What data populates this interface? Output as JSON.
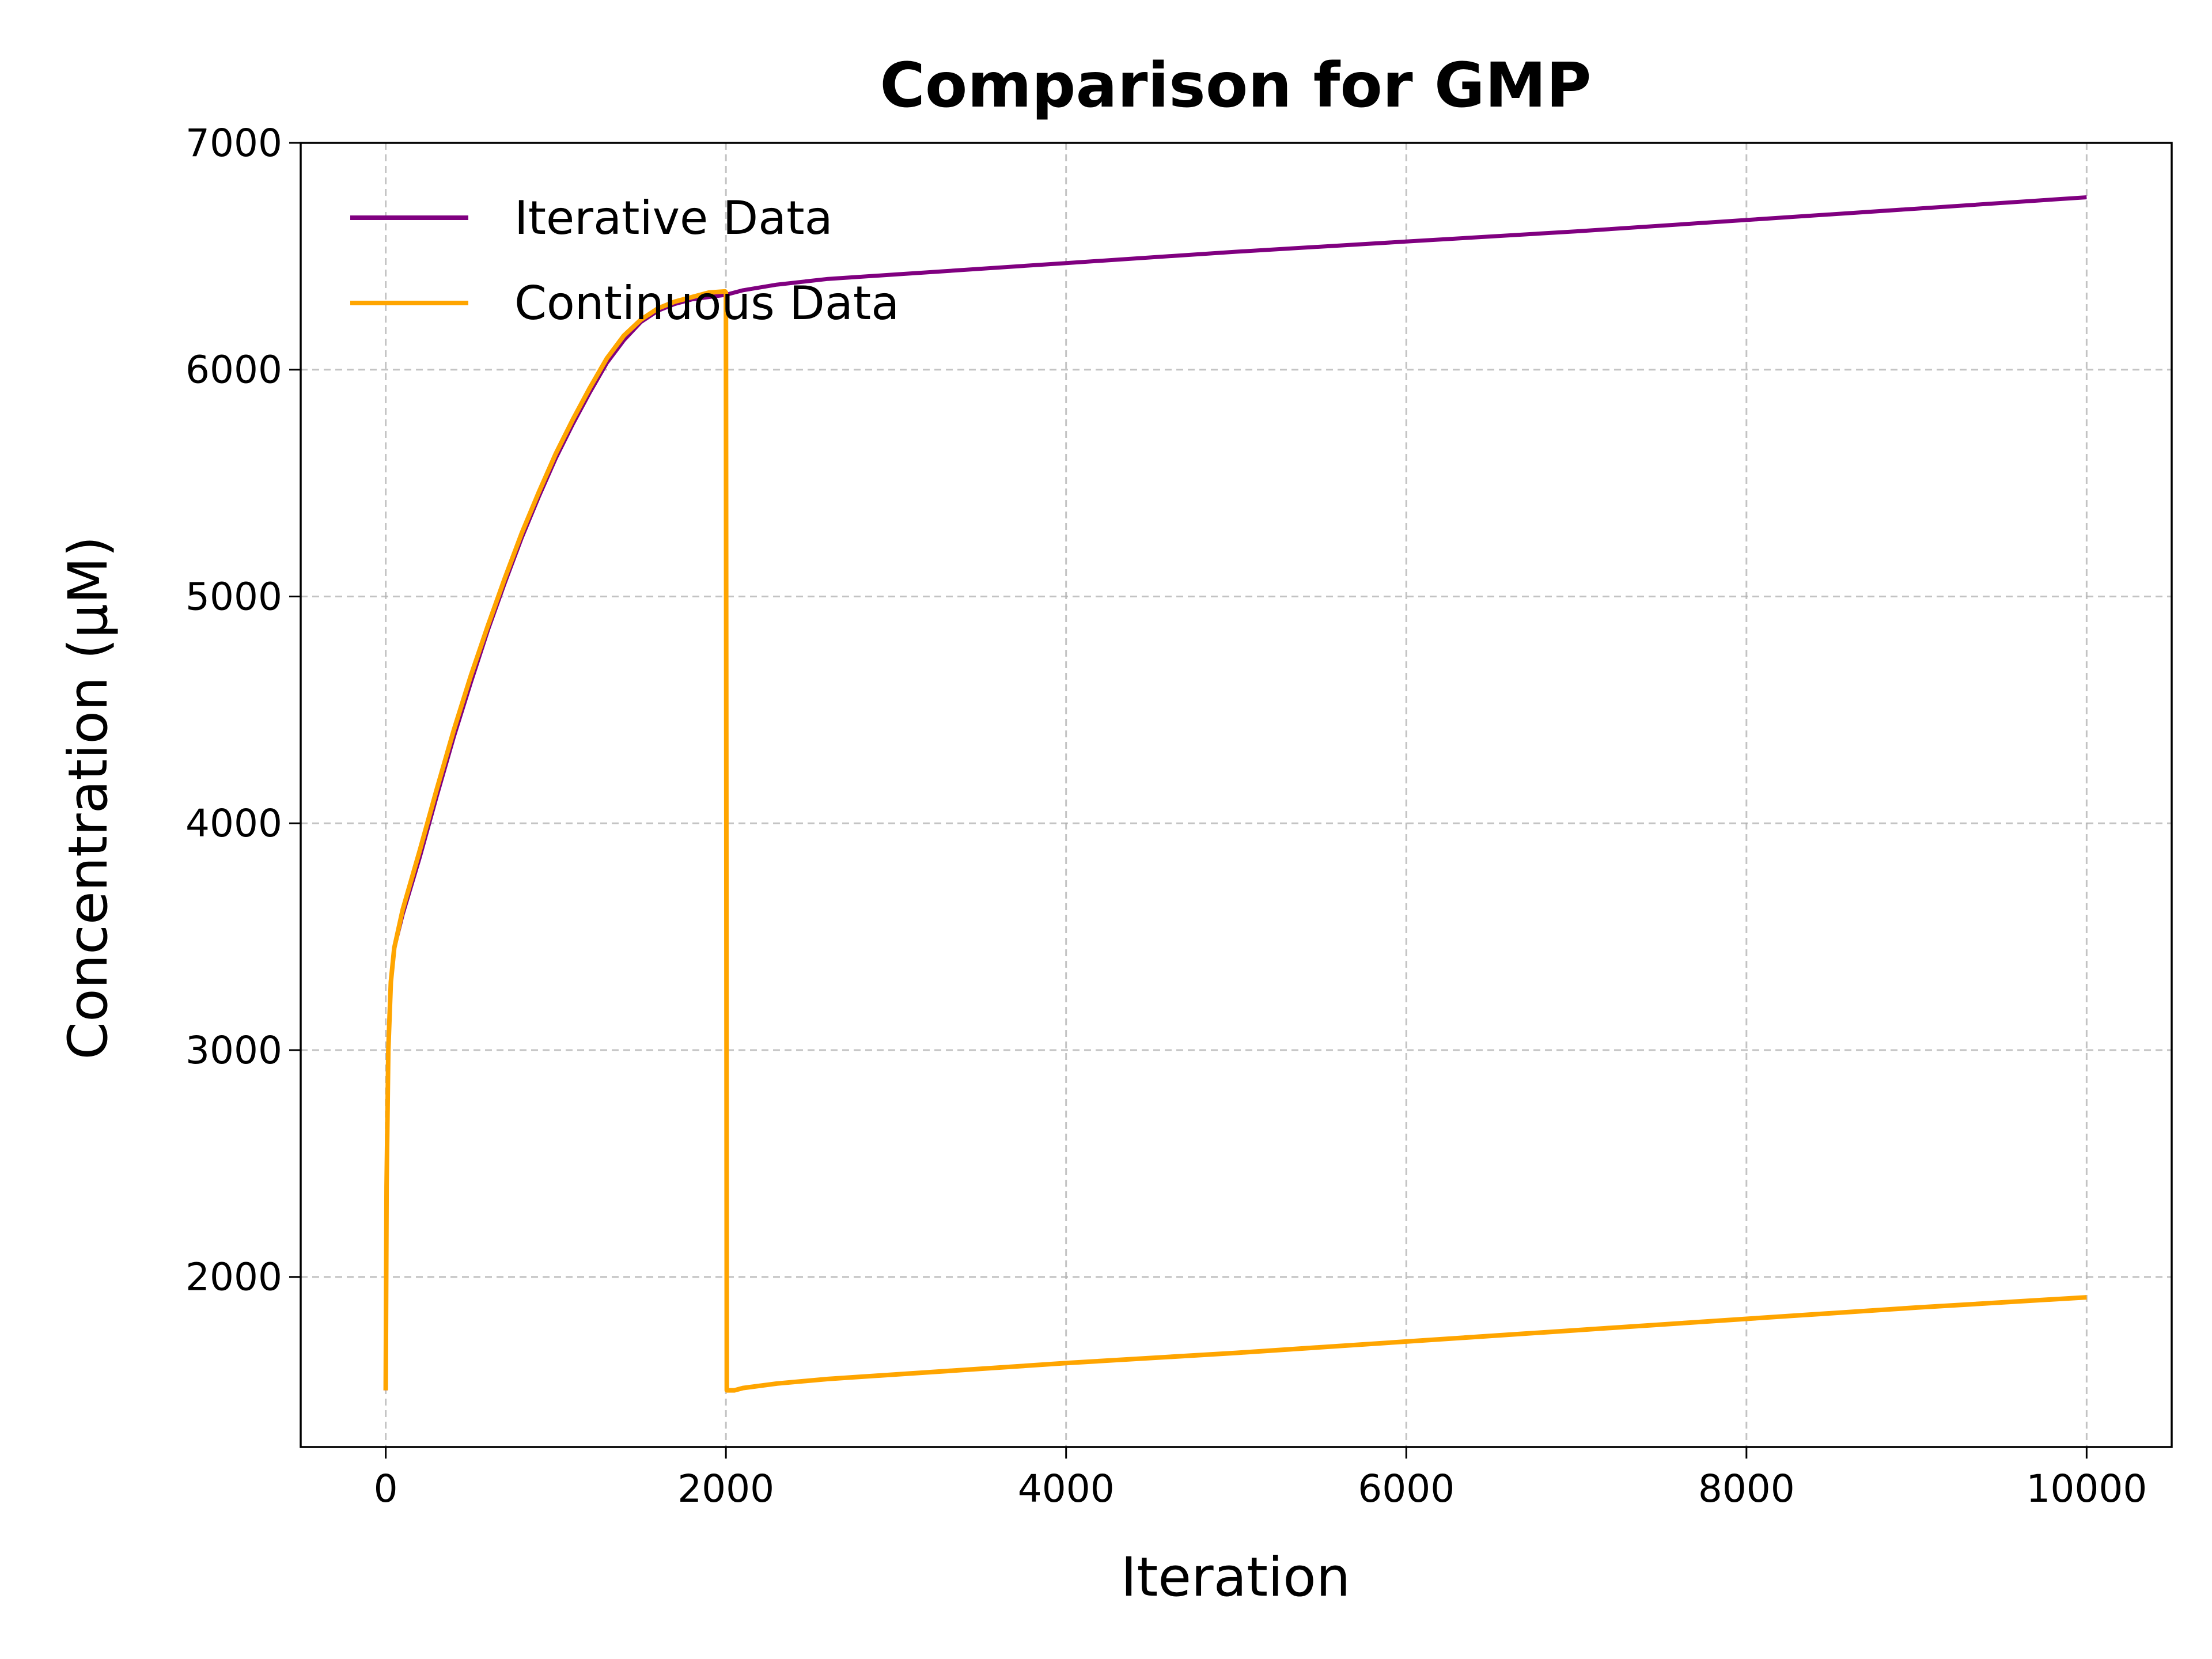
{
  "chart_data": {
    "type": "line",
    "title": "Comparison for GMP",
    "xlabel": "Iteration",
    "ylabel": "Concentration (μM)",
    "xlim": [
      -500,
      10500
    ],
    "ylim": [
      1250,
      7000
    ],
    "xticks": [
      0,
      2000,
      4000,
      6000,
      8000,
      10000
    ],
    "xtick_labels": [
      "0",
      "2000",
      "4000",
      "6000",
      "8000",
      "10000"
    ],
    "yticks": [
      2000,
      3000,
      4000,
      5000,
      6000,
      7000
    ],
    "ytick_labels": [
      "2000",
      "3000",
      "4000",
      "5000",
      "6000",
      "7000"
    ],
    "grid": true,
    "legend_position": "upper-left",
    "series": [
      {
        "name": "Iterative Data",
        "color": "#800080",
        "x": [
          0,
          5,
          15,
          30,
          50,
          100,
          200,
          300,
          400,
          500,
          600,
          700,
          800,
          900,
          1000,
          1100,
          1200,
          1300,
          1400,
          1500,
          1600,
          1700,
          1800,
          1900,
          2000,
          2100,
          2300,
          2600,
          3000,
          4000,
          5000,
          6000,
          7000,
          8000,
          9000,
          10000
        ],
        "y": [
          1500,
          2400,
          3000,
          3300,
          3450,
          3600,
          3850,
          4120,
          4380,
          4620,
          4850,
          5060,
          5260,
          5440,
          5610,
          5760,
          5900,
          6030,
          6130,
          6210,
          6260,
          6290,
          6310,
          6320,
          6330,
          6350,
          6375,
          6400,
          6420,
          6470,
          6520,
          6565,
          6610,
          6660,
          6710,
          6760
        ]
      },
      {
        "name": "Continuous Data",
        "color": "#FFA500",
        "x": [
          0,
          5,
          15,
          30,
          50,
          100,
          200,
          300,
          400,
          500,
          600,
          700,
          800,
          900,
          1000,
          1100,
          1200,
          1300,
          1400,
          1500,
          1600,
          1700,
          1800,
          1900,
          1995,
          2000,
          2005,
          2050,
          2100,
          2300,
          2600,
          3000,
          4000,
          5000,
          6000,
          7000,
          8000,
          9000,
          10000
        ],
        "y": [
          1500,
          2400,
          3000,
          3300,
          3450,
          3620,
          3880,
          4150,
          4410,
          4650,
          4870,
          5080,
          5280,
          5460,
          5630,
          5780,
          5920,
          6050,
          6150,
          6220,
          6270,
          6300,
          6320,
          6340,
          6345,
          6340,
          1500,
          1500,
          1510,
          1530,
          1550,
          1570,
          1620,
          1665,
          1715,
          1765,
          1815,
          1865,
          1910
        ]
      }
    ]
  }
}
